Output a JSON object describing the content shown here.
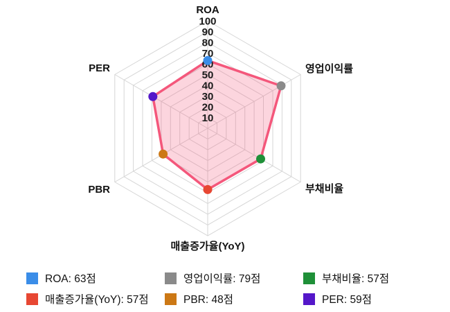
{
  "chart_data": {
    "type": "radar",
    "title": "",
    "axes": [
      "ROA",
      "영업이익률",
      "부채비율",
      "매출증가율(YoY)",
      "PBR",
      "PER"
    ],
    "values": [
      63,
      79,
      57,
      57,
      48,
      59
    ],
    "max": 100,
    "tick_interval": 10,
    "tick_labels": [
      10,
      20,
      30,
      40,
      50,
      60,
      70,
      80,
      90,
      100
    ],
    "rings": 10,
    "grid_on": true,
    "grid_color": "#d6d6d6",
    "area_stroke": "#f4577b",
    "area_fill": "rgba(244,87,123,0.25)",
    "point_colors": [
      "#3a8de8",
      "#8a8a8a",
      "#1f9038",
      "#e74733",
      "#cc7815",
      "#5417c9"
    ],
    "legend_position": "bottom"
  },
  "legend": {
    "items": [
      {
        "label": "ROA: 63점",
        "color": "#3a8de8"
      },
      {
        "label": "영업이익률: 79점",
        "color": "#8a8a8a"
      },
      {
        "label": "부채비율: 57점",
        "color": "#1f9038"
      },
      {
        "label": "매출증가율(YoY): 57점",
        "color": "#e74733"
      },
      {
        "label": "PBR: 48점",
        "color": "#cc7815"
      },
      {
        "label": "PER: 59점",
        "color": "#5417c9"
      }
    ]
  }
}
